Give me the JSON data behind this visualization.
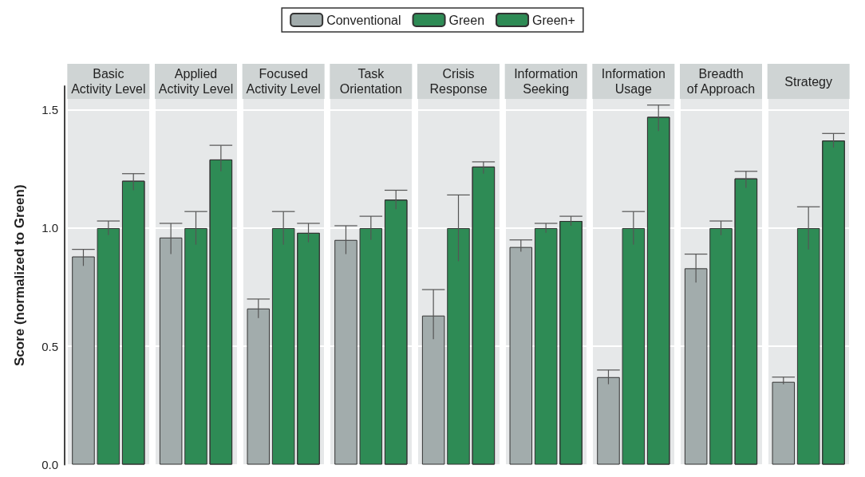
{
  "chart_data": {
    "type": "bar",
    "ylabel": "Score (normalized to Green)",
    "categories": [
      "Basic Activity Level",
      "Applied Activity Level",
      "Focused Activity Level",
      "Task Orientation",
      "Crisis Response",
      "Information Seeking",
      "Information Usage",
      "Breadth of Approach",
      "Strategy"
    ],
    "series": [
      {
        "name": "Conventional",
        "color": "#a2acac",
        "values": [
          0.88,
          0.96,
          0.66,
          0.95,
          0.63,
          0.92,
          0.37,
          0.83,
          0.35
        ],
        "errors": [
          [
            0.84,
            0.91
          ],
          [
            0.89,
            1.02
          ],
          [
            0.62,
            0.7
          ],
          [
            0.89,
            1.01
          ],
          [
            0.53,
            0.74
          ],
          [
            0.9,
            0.95
          ],
          [
            0.34,
            0.4
          ],
          [
            0.77,
            0.89
          ],
          [
            0.34,
            0.37
          ]
        ]
      },
      {
        "name": "Green",
        "color": "#2e8b55",
        "values": [
          1,
          1,
          1,
          1,
          1,
          1,
          1,
          1,
          1
        ],
        "errors": [
          [
            0.97,
            1.03
          ],
          [
            0.93,
            1.07
          ],
          [
            0.93,
            1.07
          ],
          [
            0.95,
            1.05
          ],
          [
            0.86,
            1.14
          ],
          [
            0.98,
            1.02
          ],
          [
            0.93,
            1.07
          ],
          [
            0.97,
            1.03
          ],
          [
            0.91,
            1.09
          ]
        ]
      },
      {
        "name": "Green+",
        "color": "#2e8b55",
        "values": [
          1.2,
          1.29,
          0.98,
          1.12,
          1.26,
          1.03,
          1.47,
          1.21,
          1.37
        ],
        "errors": [
          [
            1.16,
            1.23
          ],
          [
            1.24,
            1.35
          ],
          [
            0.94,
            1.02
          ],
          [
            1.08,
            1.16
          ],
          [
            1.23,
            1.28
          ],
          [
            1.01,
            1.05
          ],
          [
            1.41,
            1.52
          ],
          [
            1.17,
            1.24
          ],
          [
            1.34,
            1.4
          ]
        ]
      }
    ],
    "ylim": [
      0,
      1.6
    ],
    "yticks": [
      {
        "value": 0,
        "label": "0.0"
      },
      {
        "value": 0.5,
        "label": "0.5"
      },
      {
        "value": 1,
        "label": "1.0"
      },
      {
        "value": 1.5,
        "label": "1.5"
      }
    ],
    "grid": "y",
    "legend": "top"
  }
}
